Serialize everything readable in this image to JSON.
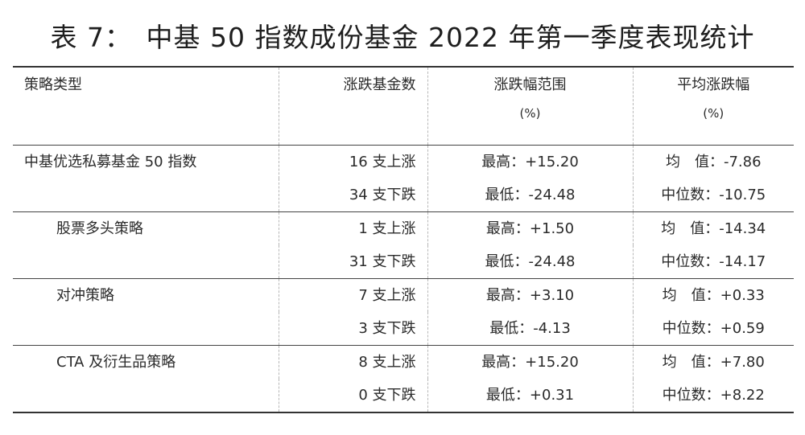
{
  "title": "表 7：　中基 50 指数成份基金 2022 年第一季度表现统计",
  "headers": {
    "strategy": "策略类型",
    "count": "涨跌基金数",
    "range": "涨跌幅范围",
    "range_unit": "(%)",
    "avg": "平均涨跌幅",
    "avg_unit": "(%)"
  },
  "groups": [
    {
      "name": "中基优选私募基金 50 指数",
      "rows": [
        {
          "count": "16 支上涨",
          "range": "最高：+15.20",
          "avg": "均　值：-7.86"
        },
        {
          "count": "34 支下跌",
          "range": "最低：-24.48",
          "avg": "中位数：-10.75"
        }
      ]
    },
    {
      "name": "股票多头策略",
      "rows": [
        {
          "count": "1 支上涨",
          "range": "最高：+1.50",
          "avg": "均　值：-14.34"
        },
        {
          "count": "31 支下跌",
          "range": "最低：-24.48",
          "avg": "中位数：-14.17"
        }
      ]
    },
    {
      "name": "对冲策略",
      "rows": [
        {
          "count": "7 支上涨",
          "range": "最高：+3.10",
          "avg": "均　值：+0.33"
        },
        {
          "count": "3 支下跌",
          "range": "最低：-4.13",
          "avg": "中位数：+0.59"
        }
      ]
    },
    {
      "name": "CTA 及衍生品策略",
      "rows": [
        {
          "count": "8 支上涨",
          "range": "最高：+15.20",
          "avg": "均　值：+7.80"
        },
        {
          "count": "0 支下跌",
          "range": "最低：+0.31",
          "avg": "中位数：+8.22"
        }
      ]
    }
  ]
}
